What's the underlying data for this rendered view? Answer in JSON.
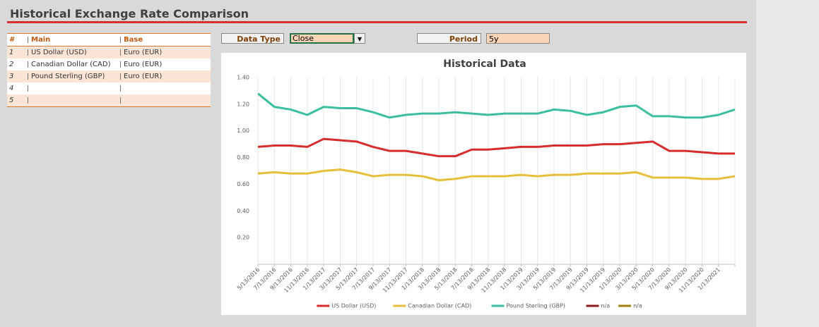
{
  "header": {
    "title": "Historical Exchange Rate Comparison"
  },
  "table": {
    "columns": [
      "#",
      "Main",
      "Base"
    ],
    "rows": [
      {
        "num": "1",
        "main": "US Dollar (USD)",
        "base": "Euro (EUR)"
      },
      {
        "num": "2",
        "main": "Canadian Dollar (CAD)",
        "base": "Euro (EUR)"
      },
      {
        "num": "3",
        "main": "Pound Sterling (GBP)",
        "base": "Euro (EUR)"
      },
      {
        "num": "4"
      },
      {
        "num": "5"
      }
    ]
  },
  "controls": {
    "data_type_label": "Data Type",
    "data_type_value": "Close",
    "period_label": "Period",
    "period_value": "5y"
  },
  "chart_data": {
    "type": "line",
    "title": "Historical Data",
    "categories": [
      "5/13/2016",
      "7/13/2016",
      "9/13/2016",
      "11/13/2016",
      "1/13/2017",
      "3/13/2017",
      "5/13/2017",
      "7/13/2017",
      "9/13/2017",
      "11/13/2017",
      "1/13/2018",
      "3/13/2018",
      "5/13/2018",
      "7/13/2018",
      "9/13/2018",
      "11/13/2018",
      "1/13/2019",
      "3/13/2019",
      "5/13/2019",
      "7/13/2019",
      "9/13/2019",
      "11/13/2019",
      "1/13/2020",
      "3/13/2020",
      "5/13/2020",
      "7/13/2020",
      "9/13/2020",
      "11/13/2020",
      "1/13/2021",
      null
    ],
    "series": [
      {
        "name": "US Dollar (USD)",
        "color": "#d62d2d",
        "values": [
          0.88,
          0.89,
          0.89,
          0.88,
          0.94,
          0.93,
          0.92,
          0.88,
          0.85,
          0.85,
          0.83,
          0.81,
          0.81,
          0.86,
          0.86,
          0.87,
          0.88,
          0.88,
          0.89,
          0.89,
          0.89,
          0.9,
          0.9,
          0.91,
          0.92,
          0.85,
          0.85,
          0.84,
          0.83,
          0.83
        ]
      },
      {
        "name": "Canadian Dollar (CAD)",
        "color": "#e6bf3c",
        "values": [
          0.68,
          0.69,
          0.68,
          0.68,
          0.7,
          0.71,
          0.69,
          0.66,
          0.67,
          0.67,
          0.66,
          0.63,
          0.64,
          0.66,
          0.66,
          0.66,
          0.67,
          0.66,
          0.67,
          0.67,
          0.68,
          0.68,
          0.68,
          0.69,
          0.65,
          0.65,
          0.65,
          0.64,
          0.64,
          0.66
        ]
      },
      {
        "name": "Pound Sterling (GBP)",
        "color": "#3bbf9e",
        "values": [
          1.28,
          1.18,
          1.16,
          1.12,
          1.18,
          1.17,
          1.17,
          1.14,
          1.1,
          1.12,
          1.13,
          1.13,
          1.14,
          1.13,
          1.12,
          1.13,
          1.13,
          1.13,
          1.16,
          1.15,
          1.12,
          1.14,
          1.18,
          1.19,
          1.11,
          1.11,
          1.1,
          1.1,
          1.12,
          1.16
        ]
      },
      {
        "name": "n/a",
        "color": "#8b1a1a",
        "values": [
          null,
          null,
          null,
          null,
          null,
          null,
          null,
          null,
          null,
          null,
          null,
          null,
          null,
          null,
          null,
          null,
          null,
          null,
          null,
          null,
          null,
          null,
          null,
          null,
          null,
          null,
          null,
          null,
          null,
          null
        ]
      },
      {
        "name": "n/a",
        "color": "#a0800f",
        "values": [
          null,
          null,
          null,
          null,
          null,
          null,
          null,
          null,
          null,
          null,
          null,
          null,
          null,
          null,
          null,
          null,
          null,
          null,
          null,
          null,
          null,
          null,
          null,
          null,
          null,
          null,
          null,
          null,
          null,
          null
        ]
      }
    ],
    "ylim": [
      0,
      1.4
    ],
    "yticks": [
      {
        "value": 0.2,
        "label": "0.20"
      },
      {
        "value": 0.4,
        "label": "0.40"
      },
      {
        "value": 0.6,
        "label": "0.60"
      },
      {
        "value": 0.8,
        "label": "0.80"
      },
      {
        "value": 1.0,
        "label": "1.00"
      },
      {
        "value": 1.2,
        "label": "1.20"
      },
      {
        "value": 1.4,
        "label": "1.40"
      }
    ],
    "grid": "vertical",
    "legend": "bottom"
  }
}
